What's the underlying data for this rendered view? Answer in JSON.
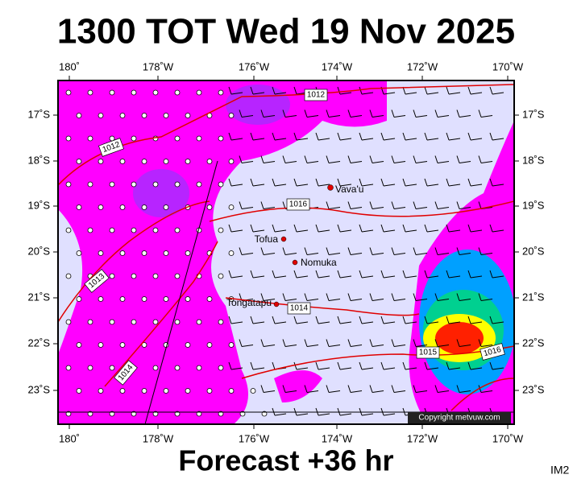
{
  "title": "1300 TOT Wed 19 Nov 2025",
  "footer": "Forecast +36 hr",
  "code": "IM2",
  "x_labels": [
    "180˚",
    "178˚W",
    "176˚W",
    "174˚W",
    "172˚W",
    "170˚W"
  ],
  "y_labels": [
    "17˚S",
    "18˚S",
    "19˚S",
    "20˚S",
    "21˚S",
    "22˚S",
    "23˚S"
  ],
  "places": [
    "Vava'u",
    "Tofua",
    "Nomuka",
    "Tongatapu"
  ],
  "isobars": [
    "1012",
    "1012",
    "1016",
    "1013",
    "1014",
    "1014",
    "1015",
    "1016"
  ],
  "copyright": "Copyright metvuw.com"
}
